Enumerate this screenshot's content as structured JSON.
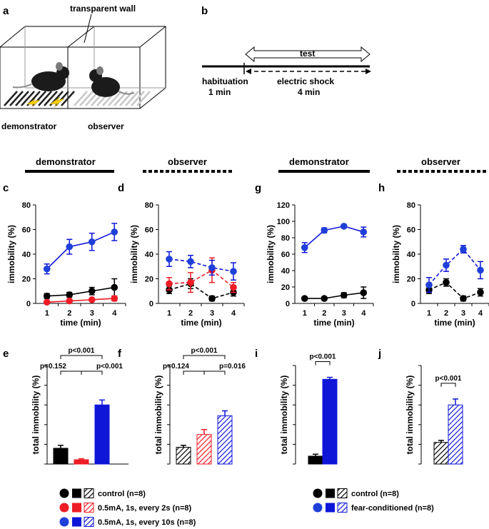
{
  "panel_a": {
    "letter": "a",
    "wall_label": "transparent wall",
    "demonstrator_label": "demonstrator",
    "observer_label": "observer"
  },
  "panel_b": {
    "letter": "b",
    "test_label": "test",
    "habituation_label": "habituation",
    "habituation_time": "1 min",
    "shock_label": "electric shock",
    "shock_time": "4 min"
  },
  "headers": {
    "demonstrator": "demonstrator",
    "observer": "observer"
  },
  "colors": {
    "black": "#000000",
    "red": "#ee1c25",
    "blue": "#0f16d8",
    "blue_dot": "#1f3fd9"
  },
  "chart_data": [
    {
      "id": "c",
      "type": "line",
      "title": "demonstrator",
      "xlabel": "time (min)",
      "ylabel": "immobility (%)",
      "categories": [
        1,
        2,
        3,
        4
      ],
      "ylim": [
        0,
        80
      ],
      "yticks": [
        0,
        20,
        40,
        60,
        80
      ],
      "series": [
        {
          "name": "control (n=8)",
          "color": "#000000",
          "dashed": false,
          "values": [
            6,
            7,
            10,
            13
          ],
          "errors": [
            2,
            2,
            3,
            7
          ]
        },
        {
          "name": "0.5mA, 1s, every 2s (n=8)",
          "color": "#ee1c25",
          "dashed": false,
          "values": [
            1,
            2,
            3,
            4
          ],
          "errors": [
            1,
            1,
            1,
            2
          ]
        },
        {
          "name": "0.5mA, 1s, every 10s (n=8)",
          "color": "#0f16d8",
          "dashed": false,
          "values": [
            28,
            46,
            50,
            58
          ],
          "errors": [
            4,
            6,
            7,
            7
          ]
        }
      ]
    },
    {
      "id": "d",
      "type": "line",
      "title": "observer",
      "xlabel": "time (min)",
      "ylabel": "immobility (%)",
      "categories": [
        1,
        2,
        3,
        4
      ],
      "ylim": [
        0,
        80
      ],
      "yticks": [
        0,
        20,
        40,
        60,
        80
      ],
      "series": [
        {
          "name": "control (n=8)",
          "color": "#000000",
          "dashed": true,
          "values": [
            11,
            16,
            4,
            9
          ],
          "errors": [
            3,
            4,
            2,
            3
          ]
        },
        {
          "name": "0.5mA, 1s, every 2s (n=8)",
          "color": "#ee1c25",
          "dashed": true,
          "values": [
            16,
            17,
            27,
            13
          ],
          "errors": [
            5,
            8,
            10,
            4
          ]
        },
        {
          "name": "0.5mA, 1s, every 10s (n=8)",
          "color": "#0f16d8",
          "dashed": true,
          "values": [
            36,
            34,
            29,
            26
          ],
          "errors": [
            6,
            5,
            6,
            7
          ]
        }
      ]
    },
    {
      "id": "g",
      "type": "line",
      "title": "demonstrator",
      "xlabel": "time (min)",
      "ylabel": "immobility (%)",
      "categories": [
        1,
        2,
        3,
        4
      ],
      "ylim": [
        0,
        120
      ],
      "yticks": [
        0,
        20,
        40,
        60,
        80,
        100,
        120
      ],
      "series": [
        {
          "name": "control (n=8)",
          "color": "#000000",
          "dashed": false,
          "values": [
            6,
            6,
            10,
            13
          ],
          "errors": [
            2,
            2,
            3,
            7
          ]
        },
        {
          "name": "fear-conditioned (n=8)",
          "color": "#0f16d8",
          "dashed": false,
          "values": [
            68,
            89,
            94,
            87
          ],
          "errors": [
            6,
            3,
            2,
            6
          ]
        }
      ]
    },
    {
      "id": "h",
      "type": "line",
      "title": "observer",
      "xlabel": "time (min)",
      "ylabel": "immobility (%)",
      "categories": [
        1,
        2,
        3,
        4
      ],
      "ylim": [
        0,
        80
      ],
      "yticks": [
        0,
        20,
        40,
        60,
        80
      ],
      "series": [
        {
          "name": "control (n=8)",
          "color": "#000000",
          "dashed": true,
          "values": [
            11,
            17,
            4,
            9
          ],
          "errors": [
            3,
            3,
            2,
            3
          ]
        },
        {
          "name": "fear-conditioned (n=8)",
          "color": "#0f16d8",
          "dashed": true,
          "values": [
            15,
            31,
            44,
            27
          ],
          "errors": [
            6,
            5,
            3,
            7
          ]
        }
      ]
    },
    {
      "id": "e",
      "type": "bar",
      "ylabel": "total immobility (%)",
      "ylim": [
        0,
        50
      ],
      "bars": [
        {
          "name": "control (n=8)",
          "color": "#000000",
          "hatched": false,
          "value": 8,
          "error": 1.5
        },
        {
          "name": "0.5mA, 1s, every 2s (n=8)",
          "color": "#ee1c25",
          "hatched": false,
          "value": 2.2,
          "error": 0.5
        },
        {
          "name": "0.5mA, 1s, every 10s (n=8)",
          "color": "#0f16d8",
          "hatched": false,
          "value": 30,
          "error": 2.5
        }
      ],
      "comparisons": [
        {
          "from": 0,
          "to": 2,
          "label": "p<0.001"
        },
        {
          "from": 0,
          "to": 1,
          "label": "p=0.152"
        },
        {
          "from": 1,
          "to": 2,
          "label": "p<0.001"
        }
      ]
    },
    {
      "id": "f",
      "type": "bar",
      "ylabel": "total immobility (%)",
      "ylim": [
        0,
        50
      ],
      "bars": [
        {
          "name": "control (n=8)",
          "color": "#000000",
          "hatched": true,
          "value": 8.5,
          "error": 1
        },
        {
          "name": "0.5mA, 1s, every 2s (n=8)",
          "color": "#ee1c25",
          "hatched": true,
          "value": 15,
          "error": 2.5
        },
        {
          "name": "0.5mA, 1s, every 10s (n=8)",
          "color": "#0f16d8",
          "hatched": true,
          "value": 24.5,
          "error": 2.5
        }
      ],
      "comparisons": [
        {
          "from": 0,
          "to": 2,
          "label": "p<0.001"
        },
        {
          "from": 0,
          "to": 1,
          "label": "p=0.124"
        },
        {
          "from": 1,
          "to": 2,
          "label": "p=0.016"
        }
      ]
    },
    {
      "id": "i",
      "type": "bar",
      "ylabel": "total immobility (%)",
      "ylim": [
        0,
        100
      ],
      "bars": [
        {
          "name": "control (n=8)",
          "color": "#000000",
          "hatched": false,
          "value": 8,
          "error": 2
        },
        {
          "name": "fear-conditioned (n=8)",
          "color": "#0f16d8",
          "hatched": false,
          "value": 86,
          "error": 2
        }
      ],
      "comparisons": [
        {
          "from": 0,
          "to": 1,
          "label": "p<0.001"
        }
      ]
    },
    {
      "id": "j",
      "type": "bar",
      "ylabel": "total immobility (%)",
      "ylim": [
        0,
        50
      ],
      "bars": [
        {
          "name": "control (n=8)",
          "color": "#000000",
          "hatched": true,
          "value": 11,
          "error": 1
        },
        {
          "name": "fear-conditioned (n=8)",
          "color": "#0f16d8",
          "hatched": true,
          "value": 30,
          "error": 3
        }
      ],
      "comparisons": [
        {
          "from": 0,
          "to": 1,
          "label": "p<0.001"
        }
      ]
    }
  ],
  "legend_left": [
    {
      "label": "control (n=8)",
      "color": "#000000"
    },
    {
      "label": "0.5mA, 1s, every 2s (n=8)",
      "color": "#ee1c25"
    },
    {
      "label": "0.5mA, 1s, every 10s (n=8)",
      "color": "#0f16d8"
    }
  ],
  "legend_right": [
    {
      "label": "control (n=8)",
      "color": "#000000"
    },
    {
      "label": "fear-conditioned (n=8)",
      "color": "#0f16d8"
    }
  ]
}
